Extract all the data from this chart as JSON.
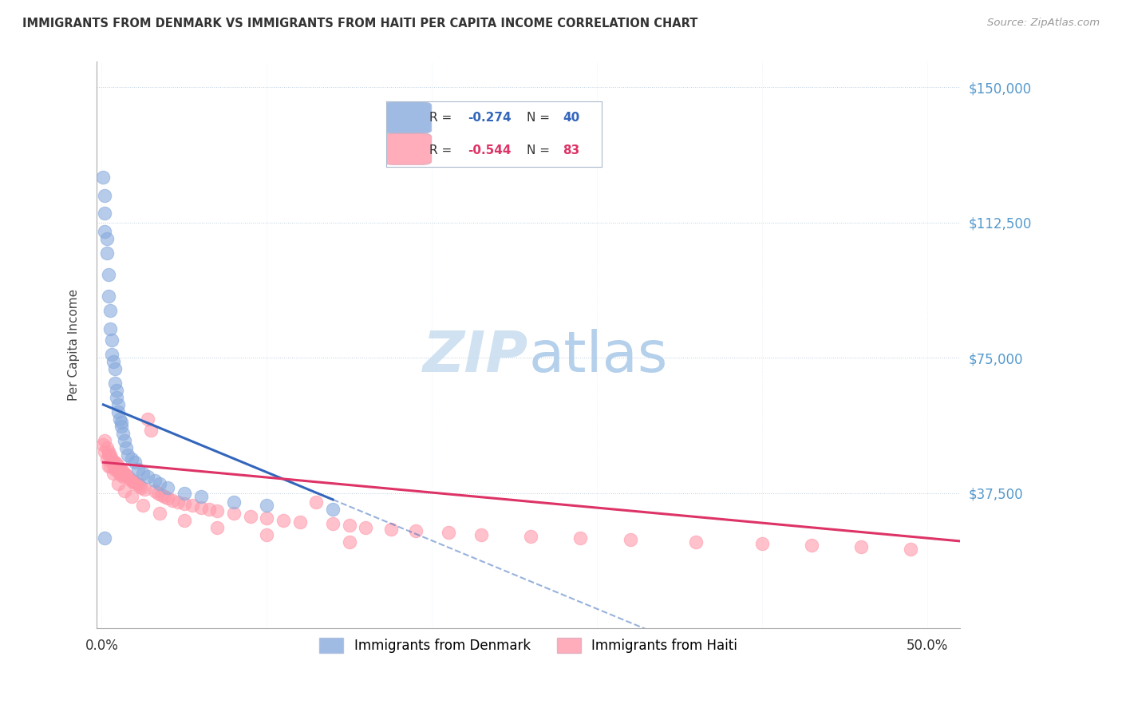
{
  "title": "IMMIGRANTS FROM DENMARK VS IMMIGRANTS FROM HAITI PER CAPITA INCOME CORRELATION CHART",
  "source": "Source: ZipAtlas.com",
  "ylabel": "Per Capita Income",
  "ytick_labels": [
    "$37,500",
    "$75,000",
    "$112,500",
    "$150,000"
  ],
  "ytick_values": [
    37500,
    75000,
    112500,
    150000
  ],
  "ylim": [
    0,
    157000
  ],
  "xlim": [
    -0.003,
    0.52
  ],
  "dk_color": "#88AADD",
  "ht_color": "#FF99AA",
  "dk_line_color": "#3366BB",
  "ht_line_color": "#DD3366",
  "watermark_color": "#DDEEFF",
  "grid_color": "#CCDDEE",
  "denmark_x": [
    0.001,
    0.002,
    0.002,
    0.002,
    0.003,
    0.003,
    0.004,
    0.004,
    0.005,
    0.005,
    0.006,
    0.006,
    0.007,
    0.008,
    0.008,
    0.009,
    0.009,
    0.01,
    0.01,
    0.011,
    0.012,
    0.012,
    0.013,
    0.014,
    0.015,
    0.016,
    0.018,
    0.02,
    0.022,
    0.025,
    0.028,
    0.032,
    0.035,
    0.04,
    0.05,
    0.06,
    0.08,
    0.1,
    0.14,
    0.002
  ],
  "denmark_y": [
    125000,
    120000,
    115000,
    110000,
    108000,
    104000,
    98000,
    92000,
    88000,
    83000,
    80000,
    76000,
    74000,
    72000,
    68000,
    66000,
    64000,
    62000,
    60000,
    58000,
    57000,
    56000,
    54000,
    52000,
    50000,
    48000,
    47000,
    46000,
    44000,
    43000,
    42000,
    41000,
    40000,
    39000,
    37500,
    36500,
    35000,
    34000,
    33000,
    25000
  ],
  "haiti_x": [
    0.001,
    0.002,
    0.002,
    0.003,
    0.003,
    0.004,
    0.004,
    0.005,
    0.005,
    0.006,
    0.006,
    0.007,
    0.007,
    0.008,
    0.008,
    0.009,
    0.009,
    0.01,
    0.01,
    0.011,
    0.011,
    0.012,
    0.012,
    0.013,
    0.013,
    0.014,
    0.015,
    0.016,
    0.017,
    0.018,
    0.019,
    0.02,
    0.021,
    0.022,
    0.023,
    0.024,
    0.026,
    0.028,
    0.03,
    0.032,
    0.034,
    0.036,
    0.038,
    0.04,
    0.043,
    0.046,
    0.05,
    0.055,
    0.06,
    0.065,
    0.07,
    0.08,
    0.09,
    0.1,
    0.11,
    0.12,
    0.13,
    0.14,
    0.15,
    0.16,
    0.175,
    0.19,
    0.21,
    0.23,
    0.26,
    0.29,
    0.32,
    0.36,
    0.4,
    0.43,
    0.46,
    0.49,
    0.004,
    0.007,
    0.01,
    0.014,
    0.018,
    0.025,
    0.035,
    0.05,
    0.07,
    0.1,
    0.15
  ],
  "haiti_y": [
    51000,
    52000,
    49000,
    50000,
    47000,
    49000,
    45000,
    48000,
    45000,
    47000,
    46000,
    46000,
    45000,
    46000,
    44000,
    45500,
    44000,
    45000,
    43500,
    44000,
    43000,
    44000,
    42500,
    43500,
    42000,
    43000,
    42500,
    42000,
    41500,
    41000,
    40500,
    40500,
    40000,
    40000,
    39500,
    39000,
    38500,
    58000,
    55000,
    38000,
    37500,
    37000,
    36500,
    36000,
    35500,
    35000,
    34500,
    34000,
    33500,
    33000,
    32500,
    32000,
    31000,
    30500,
    30000,
    29500,
    35000,
    29000,
    28500,
    28000,
    27500,
    27000,
    26500,
    26000,
    25500,
    25000,
    24500,
    24000,
    23500,
    23000,
    22500,
    22000,
    48000,
    43000,
    40000,
    38000,
    36500,
    34000,
    32000,
    30000,
    28000,
    26000,
    24000
  ]
}
